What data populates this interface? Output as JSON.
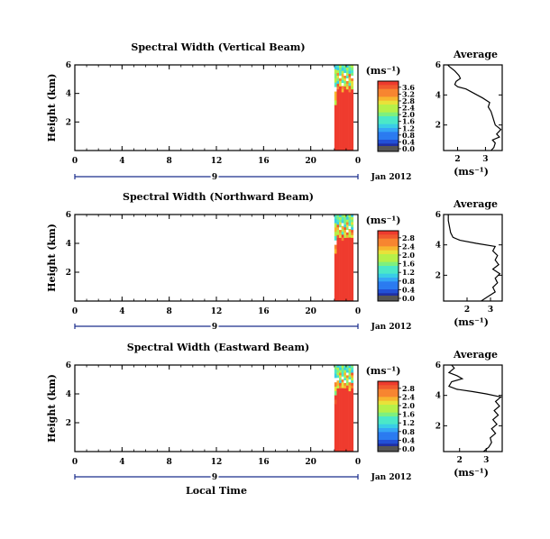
{
  "chart_data": [
    {
      "type": "heatmap",
      "title": "Spectral Width (Vertical Beam)",
      "xlabel": "",
      "ylabel": "Height (km)",
      "x_ticks": [
        "0",
        "4",
        "8",
        "12",
        "16",
        "20",
        "0"
      ],
      "y_ticks": [
        "6",
        "4",
        "2"
      ],
      "xlim": [
        0,
        24
      ],
      "ylim": [
        0,
        6
      ],
      "date_label": "Jan 2012",
      "day_label": "9",
      "colorbar": {
        "unit": "(ms⁻¹)",
        "ticks": [
          "0.0",
          "0.4",
          "0.8",
          "1.2",
          "1.6",
          "2.0",
          "2.4",
          "2.8",
          "3.2",
          "3.6"
        ],
        "min": 0.0,
        "max": 3.8
      },
      "data_columns": {
        "x_start": 22.0,
        "x_end": 23.6,
        "red_top_km": 4.3,
        "mixed_top_km": 6.0
      },
      "average_profile": {
        "title": "Average",
        "xlabel": "(ms⁻¹)",
        "x_ticks": [
          "2",
          "3"
        ],
        "y_ticks": [
          "6",
          "4",
          "2"
        ],
        "xlim": [
          1.5,
          3.6
        ],
        "ylim": [
          0.3,
          6
        ],
        "points": [
          [
            3.2,
            0.3
          ],
          [
            3.3,
            0.5
          ],
          [
            3.35,
            0.8
          ],
          [
            3.25,
            1.0
          ],
          [
            3.5,
            1.2
          ],
          [
            3.4,
            1.4
          ],
          [
            3.55,
            1.7
          ],
          [
            3.35,
            2.0
          ],
          [
            3.3,
            2.3
          ],
          [
            3.25,
            2.6
          ],
          [
            3.2,
            2.9
          ],
          [
            3.1,
            3.2
          ],
          [
            3.15,
            3.5
          ],
          [
            2.9,
            3.8
          ],
          [
            2.6,
            4.1
          ],
          [
            2.3,
            4.4
          ],
          [
            2.0,
            4.55
          ],
          [
            1.9,
            4.7
          ],
          [
            1.95,
            4.9
          ],
          [
            2.1,
            5.1
          ],
          [
            2.05,
            5.3
          ],
          [
            1.9,
            5.6
          ],
          [
            1.7,
            5.9
          ],
          [
            1.65,
            6.0
          ]
        ]
      }
    },
    {
      "type": "heatmap",
      "title": "Spectral Width (Northward Beam)",
      "xlabel": "",
      "ylabel": "Height (km)",
      "x_ticks": [
        "0",
        "4",
        "8",
        "12",
        "16",
        "20",
        "0"
      ],
      "y_ticks": [
        "6",
        "4",
        "2"
      ],
      "xlim": [
        0,
        24
      ],
      "ylim": [
        0,
        6
      ],
      "date_label": "Jan 2012",
      "day_label": "9",
      "colorbar": {
        "unit": "(ms⁻¹)",
        "ticks": [
          "0.0",
          "0.4",
          "0.8",
          "1.2",
          "1.6",
          "2.0",
          "2.4",
          "2.8"
        ],
        "min": 0.0,
        "max": 3.0
      },
      "data_columns": {
        "x_start": 22.0,
        "x_end": 23.6,
        "red_top_km": 4.4,
        "mixed_top_km": 6.0
      },
      "average_profile": {
        "title": "Average",
        "xlabel": "(ms⁻¹)",
        "x_ticks": [
          "2",
          "3"
        ],
        "y_ticks": [
          "6",
          "4",
          "2"
        ],
        "xlim": [
          1.0,
          3.5
        ],
        "ylim": [
          0.3,
          6
        ],
        "points": [
          [
            2.6,
            0.3
          ],
          [
            2.9,
            0.6
          ],
          [
            3.2,
            0.9
          ],
          [
            3.1,
            1.2
          ],
          [
            3.3,
            1.5
          ],
          [
            3.2,
            1.8
          ],
          [
            3.4,
            2.1
          ],
          [
            3.1,
            2.4
          ],
          [
            3.35,
            2.7
          ],
          [
            3.2,
            3.0
          ],
          [
            3.3,
            3.3
          ],
          [
            3.1,
            3.6
          ],
          [
            3.2,
            3.9
          ],
          [
            2.4,
            4.1
          ],
          [
            1.7,
            4.3
          ],
          [
            1.4,
            4.5
          ],
          [
            1.3,
            4.8
          ],
          [
            1.25,
            5.2
          ],
          [
            1.2,
            5.6
          ],
          [
            1.2,
            6.0
          ]
        ]
      }
    },
    {
      "type": "heatmap",
      "title": "Spectral Width (Eastward Beam)",
      "xlabel": "Local Time",
      "ylabel": "Height (km)",
      "x_ticks": [
        "0",
        "4",
        "8",
        "12",
        "16",
        "20",
        "0"
      ],
      "y_ticks": [
        "6",
        "4",
        "2"
      ],
      "xlim": [
        0,
        24
      ],
      "ylim": [
        0,
        6
      ],
      "date_label": "Jan 2012",
      "day_label": "9",
      "colorbar": {
        "unit": "(ms⁻¹)",
        "ticks": [
          "0.0",
          "0.4",
          "0.8",
          "1.2",
          "1.6",
          "2.0",
          "2.4",
          "2.8"
        ],
        "min": 0.0,
        "max": 3.0
      },
      "data_columns": {
        "x_start": 22.0,
        "x_end": 23.6,
        "red_top_km": 4.4,
        "mixed_top_km": 6.0
      },
      "average_profile": {
        "title": "Average",
        "xlabel": "(ms⁻¹)",
        "x_ticks": [
          "2",
          "3"
        ],
        "y_ticks": [
          "6",
          "4",
          "2"
        ],
        "xlim": [
          1.4,
          3.6
        ],
        "ylim": [
          0.3,
          6
        ],
        "points": [
          [
            2.9,
            0.3
          ],
          [
            3.1,
            0.6
          ],
          [
            3.2,
            0.9
          ],
          [
            3.15,
            1.2
          ],
          [
            3.35,
            1.5
          ],
          [
            3.2,
            1.8
          ],
          [
            3.4,
            2.1
          ],
          [
            3.25,
            2.4
          ],
          [
            3.45,
            2.7
          ],
          [
            3.3,
            3.0
          ],
          [
            3.5,
            3.3
          ],
          [
            3.35,
            3.6
          ],
          [
            3.55,
            3.9
          ],
          [
            3.0,
            4.1
          ],
          [
            2.5,
            4.25
          ],
          [
            1.9,
            4.4
          ],
          [
            1.6,
            4.6
          ],
          [
            1.7,
            4.9
          ],
          [
            2.1,
            5.1
          ],
          [
            1.9,
            5.3
          ],
          [
            1.6,
            5.5
          ],
          [
            1.8,
            5.8
          ],
          [
            1.7,
            6.0
          ]
        ]
      }
    }
  ]
}
